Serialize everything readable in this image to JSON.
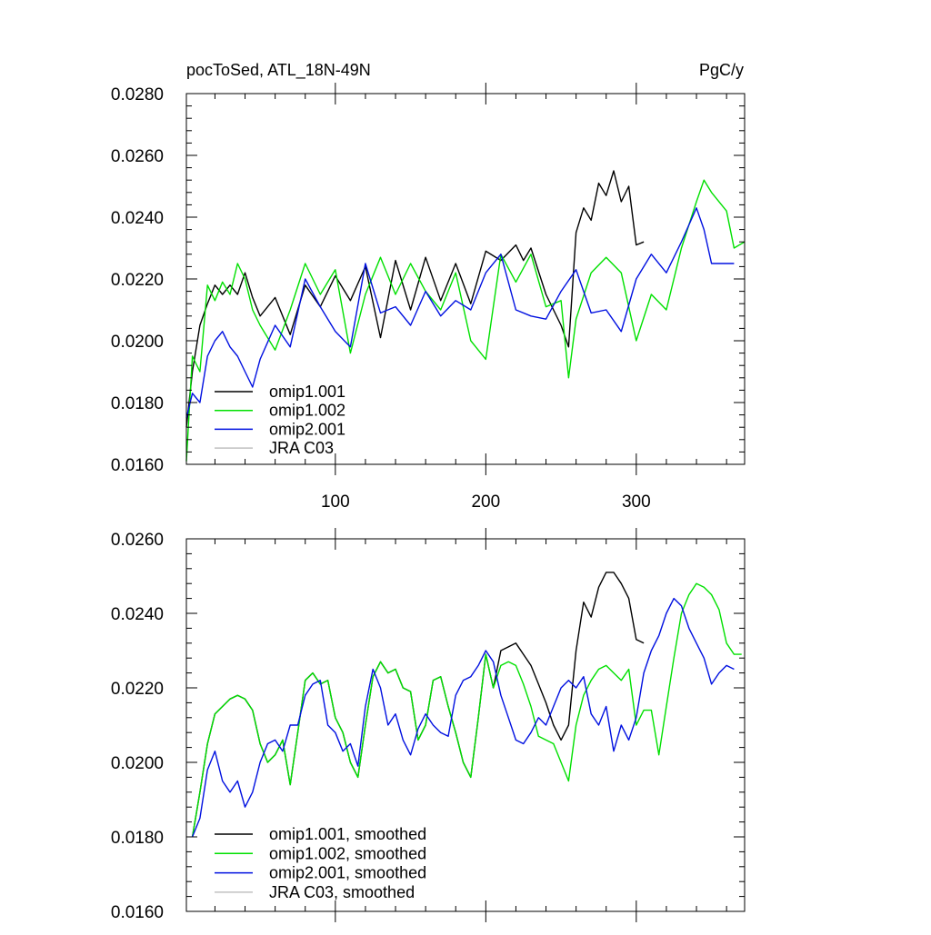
{
  "chart_data": [
    {
      "type": "line",
      "title": "pocToSed, ATL_18N-49N",
      "units": "PgC/y",
      "xlim": [
        1,
        372
      ],
      "ylim": [
        0.016,
        0.028
      ],
      "x_ticks": [
        100,
        200,
        300
      ],
      "x_tick_labels": [
        "100",
        "200",
        "300"
      ],
      "y_ticks": [
        0.016,
        0.018,
        0.02,
        0.022,
        0.024,
        0.026,
        0.028
      ],
      "y_tick_labels": [
        "0.0160",
        "0.0180",
        "0.0200",
        "0.0220",
        "0.0240",
        "0.0260",
        "0.0280"
      ],
      "legend_position": "bottom-left",
      "series": [
        {
          "name": "omip1.001",
          "color": "#000000",
          "x": [
            1,
            5,
            10,
            15,
            20,
            25,
            30,
            35,
            40,
            45,
            50,
            60,
            70,
            80,
            90,
            100,
            110,
            120,
            130,
            140,
            150,
            160,
            170,
            180,
            190,
            200,
            210,
            220,
            225,
            230,
            240,
            250,
            255,
            260,
            265,
            270,
            275,
            280,
            285,
            290,
            295,
            300,
            305
          ],
          "values": [
            0.0172,
            0.019,
            0.0205,
            0.0212,
            0.0218,
            0.0215,
            0.0218,
            0.0215,
            0.0222,
            0.0214,
            0.0208,
            0.0214,
            0.0202,
            0.0218,
            0.0211,
            0.0221,
            0.0213,
            0.0224,
            0.0201,
            0.0226,
            0.021,
            0.0227,
            0.0213,
            0.0225,
            0.0212,
            0.0229,
            0.0226,
            0.0231,
            0.0226,
            0.023,
            0.0215,
            0.0205,
            0.0198,
            0.0235,
            0.0243,
            0.0239,
            0.0251,
            0.0247,
            0.0255,
            0.0245,
            0.025,
            0.0231,
            0.0232
          ]
        },
        {
          "name": "omip1.002",
          "color": "#00e000",
          "x": [
            1,
            5,
            10,
            15,
            20,
            25,
            30,
            35,
            40,
            45,
            50,
            60,
            70,
            80,
            90,
            100,
            110,
            120,
            130,
            140,
            150,
            160,
            170,
            180,
            190,
            200,
            210,
            220,
            230,
            240,
            250,
            255,
            260,
            270,
            280,
            290,
            300,
            310,
            320,
            330,
            340,
            345,
            350,
            360,
            365,
            372
          ],
          "values": [
            0.0161,
            0.0195,
            0.019,
            0.0218,
            0.0213,
            0.0219,
            0.0215,
            0.0225,
            0.022,
            0.021,
            0.0205,
            0.0197,
            0.021,
            0.0225,
            0.0215,
            0.0223,
            0.0196,
            0.0215,
            0.0227,
            0.0215,
            0.0225,
            0.0216,
            0.021,
            0.0222,
            0.02,
            0.0194,
            0.0228,
            0.0219,
            0.0228,
            0.0211,
            0.0213,
            0.0188,
            0.0207,
            0.0222,
            0.0227,
            0.0222,
            0.02,
            0.0215,
            0.021,
            0.023,
            0.0245,
            0.0252,
            0.0248,
            0.0242,
            0.023,
            0.0232
          ]
        },
        {
          "name": "omip2.001",
          "color": "#0010e0",
          "x": [
            1,
            5,
            10,
            15,
            20,
            25,
            30,
            35,
            40,
            45,
            50,
            60,
            70,
            80,
            90,
            100,
            110,
            120,
            130,
            140,
            150,
            160,
            170,
            180,
            190,
            200,
            210,
            220,
            230,
            240,
            250,
            260,
            270,
            280,
            290,
            300,
            310,
            320,
            330,
            340,
            345,
            350,
            360,
            365
          ],
          "values": [
            0.0175,
            0.0183,
            0.018,
            0.0195,
            0.02,
            0.0203,
            0.0198,
            0.0195,
            0.019,
            0.0185,
            0.0194,
            0.0205,
            0.0198,
            0.022,
            0.0211,
            0.0203,
            0.0198,
            0.0225,
            0.0209,
            0.0211,
            0.0205,
            0.0216,
            0.0208,
            0.0213,
            0.021,
            0.0222,
            0.0228,
            0.021,
            0.0208,
            0.0207,
            0.0216,
            0.0223,
            0.0209,
            0.021,
            0.0203,
            0.022,
            0.0228,
            0.0222,
            0.0232,
            0.0243,
            0.0236,
            0.0225,
            0.0225,
            0.0225
          ]
        },
        {
          "name": "JRA C03",
          "color": "#c0c0c0",
          "x": [],
          "values": []
        }
      ]
    },
    {
      "type": "line",
      "xlim": [
        1,
        372
      ],
      "ylim": [
        0.016,
        0.026
      ],
      "x_ticks": [
        100,
        200,
        300
      ],
      "y_ticks": [
        0.016,
        0.018,
        0.02,
        0.022,
        0.024,
        0.026
      ],
      "y_tick_labels": [
        "0.0160",
        "0.0180",
        "0.0200",
        "0.0220",
        "0.0240",
        "0.0260"
      ],
      "legend_position": "bottom-left",
      "series": [
        {
          "name": "omip1.001, smoothed",
          "color": "#000000",
          "x": [
            5,
            10,
            15,
            20,
            25,
            30,
            35,
            40,
            45,
            50,
            55,
            60,
            65,
            70,
            75,
            80,
            85,
            90,
            95,
            100,
            105,
            110,
            115,
            120,
            125,
            130,
            135,
            140,
            145,
            150,
            155,
            160,
            165,
            170,
            175,
            180,
            185,
            190,
            195,
            200,
            205,
            210,
            215,
            220,
            225,
            230,
            235,
            240,
            245,
            250,
            255,
            260,
            265,
            270,
            275,
            280,
            285,
            290,
            295,
            300,
            305
          ],
          "values": [
            0.018,
            0.0192,
            0.0205,
            0.0213,
            0.0215,
            0.0217,
            0.0218,
            0.0217,
            0.0214,
            0.0205,
            0.02,
            0.0202,
            0.0206,
            0.0194,
            0.0208,
            0.0222,
            0.0224,
            0.0221,
            0.0222,
            0.0212,
            0.0208,
            0.02,
            0.0196,
            0.021,
            0.0223,
            0.0227,
            0.0224,
            0.0225,
            0.022,
            0.0219,
            0.0206,
            0.021,
            0.0222,
            0.0223,
            0.0215,
            0.0208,
            0.02,
            0.0196,
            0.0212,
            0.0229,
            0.022,
            0.023,
            0.0231,
            0.0232,
            0.0229,
            0.0226,
            0.0221,
            0.0216,
            0.021,
            0.0206,
            0.021,
            0.023,
            0.0243,
            0.0239,
            0.0247,
            0.0251,
            0.0251,
            0.0248,
            0.0244,
            0.0233,
            0.0232
          ]
        },
        {
          "name": "omip1.002, smoothed",
          "color": "#00e000",
          "x": [
            5,
            10,
            15,
            20,
            25,
            30,
            35,
            40,
            45,
            50,
            55,
            60,
            65,
            70,
            75,
            80,
            85,
            90,
            95,
            100,
            105,
            110,
            115,
            120,
            125,
            130,
            135,
            140,
            145,
            150,
            155,
            160,
            165,
            170,
            175,
            180,
            185,
            190,
            195,
            200,
            205,
            210,
            215,
            220,
            225,
            230,
            235,
            240,
            245,
            250,
            255,
            260,
            265,
            270,
            275,
            280,
            285,
            290,
            295,
            300,
            305,
            310,
            315,
            320,
            325,
            330,
            335,
            340,
            345,
            350,
            355,
            360,
            365,
            370
          ],
          "values": [
            0.018,
            0.0192,
            0.0205,
            0.0213,
            0.0215,
            0.0217,
            0.0218,
            0.0217,
            0.0214,
            0.0205,
            0.02,
            0.0202,
            0.0206,
            0.0194,
            0.0208,
            0.0222,
            0.0224,
            0.0221,
            0.0222,
            0.0212,
            0.0208,
            0.02,
            0.0196,
            0.021,
            0.0223,
            0.0227,
            0.0224,
            0.0225,
            0.022,
            0.0219,
            0.0206,
            0.021,
            0.0222,
            0.0223,
            0.0215,
            0.0208,
            0.02,
            0.0196,
            0.0212,
            0.0229,
            0.022,
            0.0226,
            0.0227,
            0.0226,
            0.0221,
            0.0215,
            0.0207,
            0.0206,
            0.0205,
            0.02,
            0.0195,
            0.021,
            0.0218,
            0.0222,
            0.0225,
            0.0226,
            0.0224,
            0.0222,
            0.0225,
            0.021,
            0.0214,
            0.0214,
            0.0202,
            0.0215,
            0.0228,
            0.024,
            0.0245,
            0.0248,
            0.0247,
            0.0245,
            0.0241,
            0.0232,
            0.0229,
            0.0229
          ]
        },
        {
          "name": "omip2.001, smoothed",
          "color": "#0010e0",
          "x": [
            5,
            10,
            15,
            20,
            25,
            30,
            35,
            40,
            45,
            50,
            55,
            60,
            65,
            70,
            75,
            80,
            85,
            90,
            95,
            100,
            105,
            110,
            115,
            120,
            125,
            130,
            135,
            140,
            145,
            150,
            155,
            160,
            165,
            170,
            175,
            180,
            185,
            190,
            195,
            200,
            205,
            210,
            215,
            220,
            225,
            230,
            235,
            240,
            245,
            250,
            255,
            260,
            265,
            270,
            275,
            280,
            285,
            290,
            295,
            300,
            305,
            310,
            315,
            320,
            325,
            330,
            335,
            340,
            345,
            350,
            355,
            360,
            365
          ],
          "values": [
            0.018,
            0.0185,
            0.0198,
            0.0203,
            0.0195,
            0.0192,
            0.0195,
            0.0188,
            0.0192,
            0.02,
            0.0205,
            0.0206,
            0.0203,
            0.021,
            0.021,
            0.0218,
            0.0221,
            0.0222,
            0.021,
            0.0208,
            0.0203,
            0.0205,
            0.0199,
            0.0215,
            0.0225,
            0.022,
            0.021,
            0.0213,
            0.0206,
            0.0202,
            0.0209,
            0.0213,
            0.021,
            0.0208,
            0.0207,
            0.0218,
            0.0222,
            0.0223,
            0.0226,
            0.023,
            0.0227,
            0.0218,
            0.0212,
            0.0206,
            0.0205,
            0.0208,
            0.0212,
            0.021,
            0.0215,
            0.022,
            0.0222,
            0.022,
            0.0223,
            0.0213,
            0.021,
            0.0215,
            0.0203,
            0.021,
            0.0206,
            0.0212,
            0.0224,
            0.023,
            0.0234,
            0.024,
            0.0244,
            0.0242,
            0.0236,
            0.0232,
            0.0228,
            0.0221,
            0.0224,
            0.0226,
            0.0225
          ]
        },
        {
          "name": "JRA C03, smoothed",
          "color": "#c0c0c0",
          "x": [],
          "values": []
        }
      ]
    }
  ]
}
